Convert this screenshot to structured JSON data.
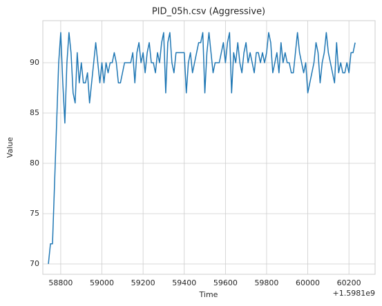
{
  "chart_data": {
    "type": "line",
    "title": "PID_05h.csv (Aggressive)",
    "x_label": "Time",
    "y_label": "Value",
    "x_offset_label": "+1.5981e9",
    "grid": true,
    "xlim": [
      58713,
      60327
    ],
    "ylim": [
      68.97,
      94.18
    ],
    "xticks": [
      58800,
      59000,
      59200,
      59400,
      59600,
      59800,
      60000,
      60200
    ],
    "yticks": [
      70,
      75,
      80,
      85,
      90
    ],
    "x": [
      58740,
      58750,
      58760,
      58770,
      58780,
      58790,
      58800,
      58810,
      58820,
      58830,
      58840,
      58850,
      58860,
      58870,
      58880,
      58890,
      58900,
      58910,
      58920,
      58930,
      58940,
      58950,
      58960,
      58970,
      58980,
      58990,
      59000,
      59010,
      59020,
      59030,
      59040,
      59050,
      59060,
      59070,
      59080,
      59090,
      59100,
      59110,
      59120,
      59130,
      59140,
      59150,
      59160,
      59170,
      59180,
      59190,
      59200,
      59210,
      59220,
      59230,
      59240,
      59250,
      59260,
      59270,
      59280,
      59290,
      59300,
      59310,
      59320,
      59330,
      59340,
      59350,
      59360,
      59370,
      59380,
      59390,
      59400,
      59410,
      59420,
      59430,
      59440,
      59450,
      59460,
      59470,
      59480,
      59490,
      59500,
      59510,
      59520,
      59530,
      59540,
      59550,
      59560,
      59570,
      59580,
      59590,
      59600,
      59610,
      59620,
      59630,
      59640,
      59650,
      59660,
      59670,
      59680,
      59690,
      59700,
      59710,
      59720,
      59730,
      59740,
      59750,
      59760,
      59770,
      59780,
      59790,
      59800,
      59810,
      59820,
      59830,
      59840,
      59850,
      59860,
      59870,
      59880,
      59890,
      59900,
      59910,
      59920,
      59930,
      59940,
      59950,
      59960,
      59970,
      59980,
      59990,
      60000,
      60010,
      60020,
      60030,
      60040,
      60050,
      60060,
      60070,
      60080,
      60090,
      60100,
      60110,
      60120,
      60130,
      60140,
      60150,
      60160,
      60170,
      60180,
      60190,
      60200,
      60210,
      60220,
      60230
    ],
    "series": [
      {
        "color": "#1f77b4",
        "values": [
          70,
          72,
          72,
          78,
          84,
          90,
          93,
          88,
          84,
          90,
          93,
          91,
          87,
          86,
          91,
          88,
          90,
          88,
          88,
          89,
          86,
          88,
          90,
          92,
          90,
          88,
          90,
          88,
          90,
          89,
          90,
          90,
          91,
          90,
          88,
          88,
          89,
          90,
          90,
          90,
          90,
          91,
          88,
          91,
          92,
          90,
          91,
          89,
          91,
          92,
          90,
          90,
          89,
          91,
          90,
          92,
          93,
          87,
          92,
          93,
          90,
          89,
          91,
          91,
          91,
          91,
          91,
          87,
          90,
          91,
          89,
          90,
          91,
          92,
          92,
          93,
          87,
          91,
          93,
          91,
          89,
          90,
          90,
          90,
          91,
          92,
          90,
          92,
          93,
          87,
          91,
          90,
          92,
          90,
          89,
          91,
          92,
          90,
          91,
          90,
          89,
          91,
          91,
          90,
          91,
          90,
          91,
          93,
          92,
          89,
          90,
          91,
          89,
          92,
          90,
          91,
          90,
          90,
          89,
          89,
          91,
          93,
          91,
          90,
          89,
          90,
          87,
          88,
          89,
          90,
          92,
          91,
          88,
          90,
          91,
          93,
          91,
          90,
          89,
          88,
          92,
          89,
          90,
          89,
          89,
          90,
          89,
          91,
          91,
          92
        ]
      }
    ]
  }
}
